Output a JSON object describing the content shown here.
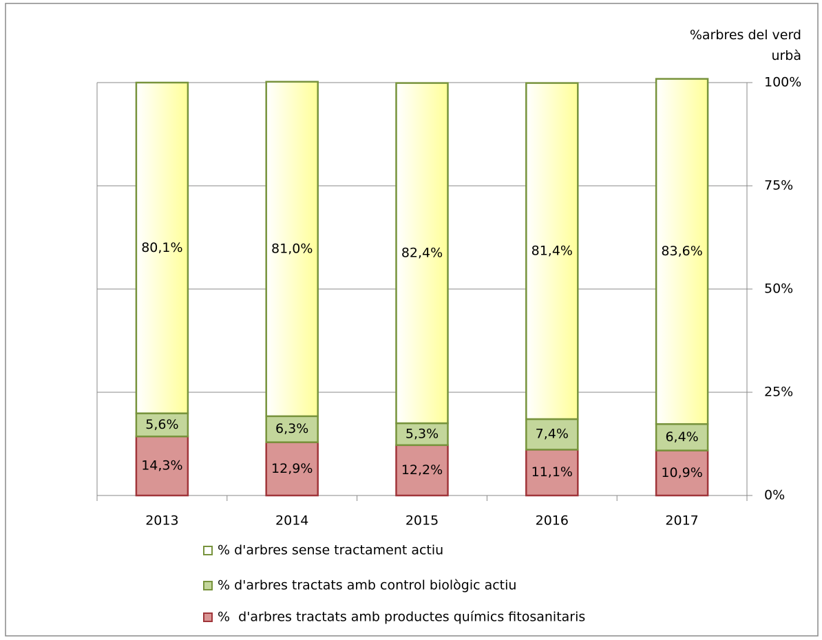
{
  "chart_data": {
    "type": "stacked_bar",
    "y_axis_label": "%arbres del verd urbà",
    "categories": [
      "2013",
      "2014",
      "2015",
      "2016",
      "2017"
    ],
    "series": [
      {
        "name": "%  d'arbres tractats amb productes químics fitosanitaris",
        "color": "#d99594",
        "edgecolor": "#a0353a",
        "values": [
          14.3,
          12.9,
          12.2,
          11.1,
          10.9
        ],
        "value_labels": [
          "14,3%",
          "12,9%",
          "12,2%",
          "11,1%",
          "10,9%"
        ]
      },
      {
        "name": "% d'arbres tractats amb control biològic actiu",
        "color": "#c3d69b",
        "edgecolor": "#77933c",
        "values": [
          5.6,
          6.3,
          5.3,
          7.4,
          6.4
        ],
        "value_labels": [
          "5,6%",
          "6,3%",
          "5,3%",
          "7,4%",
          "6,4%"
        ]
      },
      {
        "name": "% d'arbres sense tractament actiu",
        "color": "#ffff99",
        "edgecolor": "#77933c",
        "values": [
          80.1,
          81.0,
          82.4,
          81.4,
          83.6
        ],
        "value_labels": [
          "80,1%",
          "81,0%",
          "82,4%",
          "81,4%",
          "83,6%"
        ]
      }
    ],
    "ylim": [
      0,
      100
    ],
    "yticks": [
      {
        "value": 0,
        "label": "0%"
      },
      {
        "value": 25,
        "label": "25%"
      },
      {
        "value": 50,
        "label": "50%"
      },
      {
        "value": 75,
        "label": "75%"
      },
      {
        "value": 100,
        "label": "100%"
      }
    ],
    "y_axis_side": "right",
    "grid": true
  }
}
